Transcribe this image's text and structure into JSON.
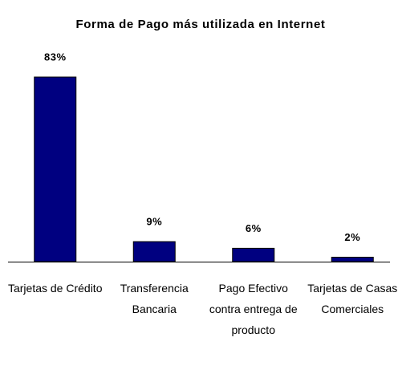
{
  "chart_data": {
    "type": "bar",
    "title": "Forma de Pago más utilizada en Internet",
    "categories": [
      "Tarjetas de Crédito",
      "Transferencia Bancaria",
      "Pago Efectivo contra entrega de producto",
      "Tarjetas de Casas Comerciales"
    ],
    "values": [
      83,
      9,
      6,
      2
    ],
    "value_labels": [
      "83%",
      "9%",
      "6%",
      "2%"
    ],
    "color": "#000080"
  }
}
